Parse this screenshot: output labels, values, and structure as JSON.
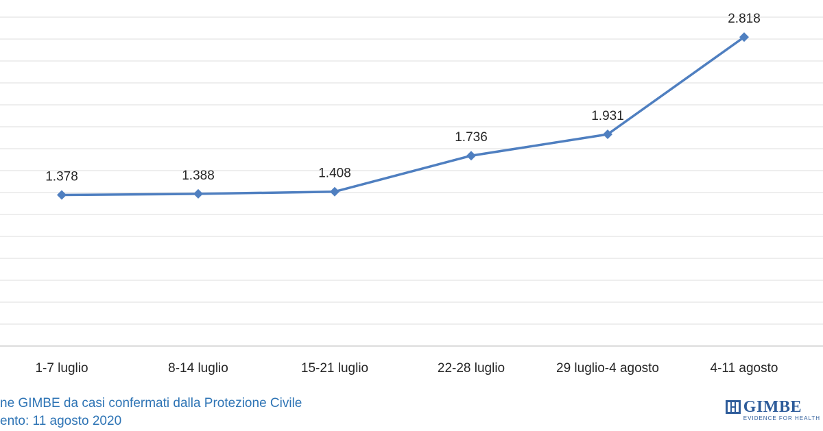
{
  "chart_data": {
    "type": "line",
    "categories": [
      "1-7 luglio",
      "8-14 luglio",
      "15-21 luglio",
      "22-28 luglio",
      "29 luglio-4 agosto",
      "4-11 agosto"
    ],
    "series": [
      {
        "values": [
          1378,
          1388,
          1408,
          1736,
          1931,
          2818
        ],
        "labels": [
          "1.378",
          "1.388",
          "1.408",
          "1.736",
          "1.931",
          "2.818"
        ],
        "color": "#4f7fc0"
      }
    ],
    "ylim": [
      0,
      3000
    ],
    "grid": true,
    "gridlines": [
      200,
      400,
      600,
      800,
      1000,
      1200,
      1400,
      1600,
      1800,
      2000,
      2200,
      2400,
      2600,
      2800,
      3000
    ],
    "marker": "diamond"
  },
  "footer": {
    "source": "ne GIMBE da casi confermati dalla Protezione  Civile",
    "update": "ento: 11 agosto 2020"
  },
  "logo": {
    "text": "GIMBE",
    "tagline": "EVIDENCE FOR HEALTH",
    "color": "#2e5c9a"
  }
}
